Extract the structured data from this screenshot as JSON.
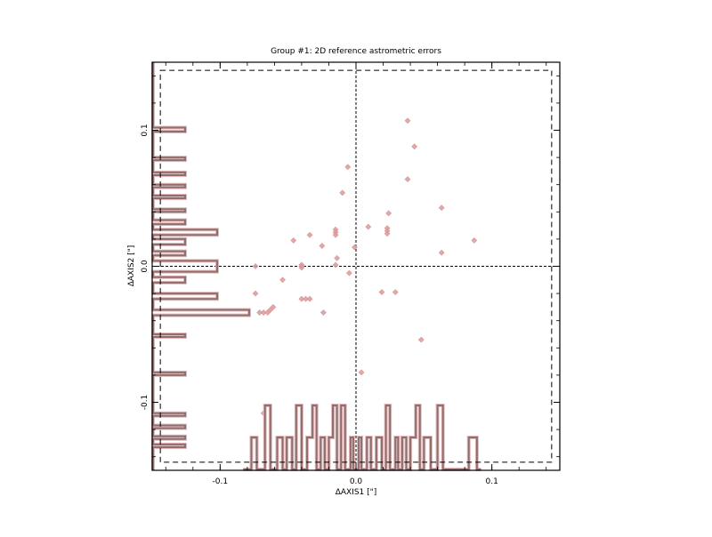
{
  "chart_data": {
    "type": "scatter",
    "title": "Group #1: 2D reference astrometric errors",
    "xlabel": "ΔAXIS1 [\"]",
    "ylabel": "ΔAXIS2 [\"]",
    "xlim": [
      -0.15,
      0.15
    ],
    "ylim": [
      -0.15,
      0.15
    ],
    "x_ticks": [
      -0.1,
      0.0,
      0.1
    ],
    "x_tick_labels": [
      "-0.1",
      "0.0",
      "0.1"
    ],
    "y_ticks": [
      -0.1,
      0.0,
      0.1
    ],
    "y_tick_labels": [
      "-0.1",
      "0.0",
      "0.1"
    ],
    "grid": false,
    "zero_lines": true,
    "inner_box": {
      "x": [
        -0.144,
        0.144
      ],
      "y": [
        -0.144,
        0.144
      ]
    },
    "point_color": "#d9999a",
    "point_color_dense": "#c04848",
    "histogram_color": "#8a7070",
    "series": [
      {
        "values": [
          [
            0.038,
            0.107
          ],
          [
            0.043,
            0.088
          ],
          [
            0.038,
            0.064
          ],
          [
            -0.006,
            0.073
          ],
          [
            -0.01,
            0.054
          ],
          [
            0.063,
            0.043
          ],
          [
            0.024,
            0.039
          ],
          [
            -0.015,
            0.027
          ],
          [
            -0.015,
            0.025
          ],
          [
            -0.015,
            0.023
          ],
          [
            0.009,
            0.029
          ],
          [
            0.023,
            0.028
          ],
          [
            0.023,
            0.026
          ],
          [
            0.023,
            0.024
          ],
          [
            -0.034,
            0.023
          ],
          [
            -0.046,
            0.019
          ],
          [
            -0.025,
            0.015
          ],
          [
            -0.001,
            0.014
          ],
          [
            0.087,
            0.019
          ],
          [
            0.063,
            0.01
          ],
          [
            -0.014,
            0.006
          ],
          [
            -0.074,
            0.0
          ],
          [
            -0.04,
            0.001
          ],
          [
            -0.04,
            0.0
          ],
          [
            -0.04,
            -0.001
          ],
          [
            -0.015,
            0.001
          ],
          [
            -0.005,
            -0.005
          ],
          [
            -0.054,
            -0.01
          ],
          [
            -0.074,
            -0.02
          ],
          [
            -0.04,
            -0.024
          ],
          [
            -0.037,
            -0.024
          ],
          [
            -0.034,
            -0.024
          ],
          [
            0.019,
            -0.019
          ],
          [
            0.029,
            -0.019
          ],
          [
            -0.061,
            -0.03
          ],
          [
            -0.063,
            -0.032
          ],
          [
            -0.065,
            -0.034
          ],
          [
            -0.068,
            -0.034
          ],
          [
            -0.071,
            -0.034
          ],
          [
            -0.024,
            -0.034
          ],
          [
            0.048,
            -0.054
          ],
          [
            0.004,
            -0.078
          ],
          [
            -0.068,
            -0.108
          ]
        ]
      }
    ],
    "histogram_x": {
      "bins": [
        [
          -0.083,
          -0.077,
          0
        ],
        [
          -0.077,
          -0.073,
          1
        ],
        [
          -0.073,
          -0.067,
          0
        ],
        [
          -0.067,
          -0.063,
          2
        ],
        [
          -0.063,
          -0.058,
          0
        ],
        [
          -0.058,
          -0.054,
          1
        ],
        [
          -0.054,
          -0.051,
          0
        ],
        [
          -0.051,
          -0.047,
          1
        ],
        [
          -0.047,
          -0.044,
          0
        ],
        [
          -0.044,
          -0.04,
          2
        ],
        [
          -0.04,
          -0.036,
          0
        ],
        [
          -0.036,
          -0.032,
          1
        ],
        [
          -0.032,
          -0.029,
          2
        ],
        [
          -0.029,
          -0.026,
          0
        ],
        [
          -0.026,
          -0.023,
          1
        ],
        [
          -0.023,
          -0.02,
          0
        ],
        [
          -0.02,
          -0.017,
          1
        ],
        [
          -0.017,
          -0.014,
          2
        ],
        [
          -0.014,
          -0.011,
          0
        ],
        [
          -0.011,
          -0.008,
          2
        ],
        [
          -0.008,
          -0.004,
          0
        ],
        [
          -0.004,
          -0.002,
          1
        ],
        [
          -0.002,
          0.002,
          0
        ],
        [
          0.002,
          0.004,
          1
        ],
        [
          0.004,
          0.008,
          0
        ],
        [
          0.008,
          0.011,
          1
        ],
        [
          0.011,
          0.015,
          0
        ],
        [
          0.015,
          0.019,
          1
        ],
        [
          0.019,
          0.022,
          0
        ],
        [
          0.022,
          0.025,
          2
        ],
        [
          0.025,
          0.029,
          0
        ],
        [
          0.029,
          0.031,
          1
        ],
        [
          0.031,
          0.034,
          0
        ],
        [
          0.034,
          0.037,
          1
        ],
        [
          0.037,
          0.04,
          0
        ],
        [
          0.04,
          0.044,
          1
        ],
        [
          0.044,
          0.047,
          2
        ],
        [
          0.047,
          0.05,
          0
        ],
        [
          0.05,
          0.055,
          1
        ],
        [
          0.055,
          0.06,
          0
        ],
        [
          0.06,
          0.064,
          2
        ],
        [
          0.064,
          0.083,
          0
        ],
        [
          0.083,
          0.089,
          1
        ],
        [
          0.089,
          0.092,
          0
        ]
      ]
    },
    "histogram_y": {
      "bins": [
        [
          -0.15,
          -0.133,
          0
        ],
        [
          -0.133,
          -0.131,
          1
        ],
        [
          -0.131,
          -0.127,
          0
        ],
        [
          -0.127,
          -0.125,
          1
        ],
        [
          -0.125,
          -0.119,
          0
        ],
        [
          -0.119,
          -0.117,
          1
        ],
        [
          -0.117,
          -0.11,
          0
        ],
        [
          -0.11,
          -0.108,
          1
        ],
        [
          -0.108,
          -0.08,
          0
        ],
        [
          -0.08,
          -0.078,
          1
        ],
        [
          -0.078,
          -0.052,
          0
        ],
        [
          -0.052,
          -0.05,
          1
        ],
        [
          -0.05,
          -0.036,
          0
        ],
        [
          -0.036,
          -0.032,
          3
        ],
        [
          -0.032,
          -0.024,
          0
        ],
        [
          -0.024,
          -0.02,
          2
        ],
        [
          -0.02,
          -0.012,
          0
        ],
        [
          -0.012,
          -0.008,
          1
        ],
        [
          -0.008,
          -0.004,
          0
        ],
        [
          -0.004,
          0.004,
          2
        ],
        [
          0.004,
          0.008,
          0
        ],
        [
          0.008,
          0.011,
          1
        ],
        [
          0.011,
          0.016,
          0
        ],
        [
          0.016,
          0.02,
          1
        ],
        [
          0.02,
          0.023,
          0
        ],
        [
          0.023,
          0.027,
          2
        ],
        [
          0.027,
          0.031,
          0
        ],
        [
          0.031,
          0.034,
          1
        ],
        [
          0.034,
          0.04,
          0
        ],
        [
          0.04,
          0.042,
          1
        ],
        [
          0.042,
          0.05,
          0
        ],
        [
          0.05,
          0.052,
          1
        ],
        [
          0.052,
          0.058,
          0
        ],
        [
          0.058,
          0.06,
          1
        ],
        [
          0.06,
          0.067,
          0
        ],
        [
          0.067,
          0.069,
          1
        ],
        [
          0.069,
          0.078,
          0
        ],
        [
          0.078,
          0.08,
          1
        ],
        [
          0.08,
          0.099,
          0
        ],
        [
          0.099,
          0.102,
          1
        ],
        [
          0.102,
          0.15,
          0
        ]
      ]
    }
  }
}
